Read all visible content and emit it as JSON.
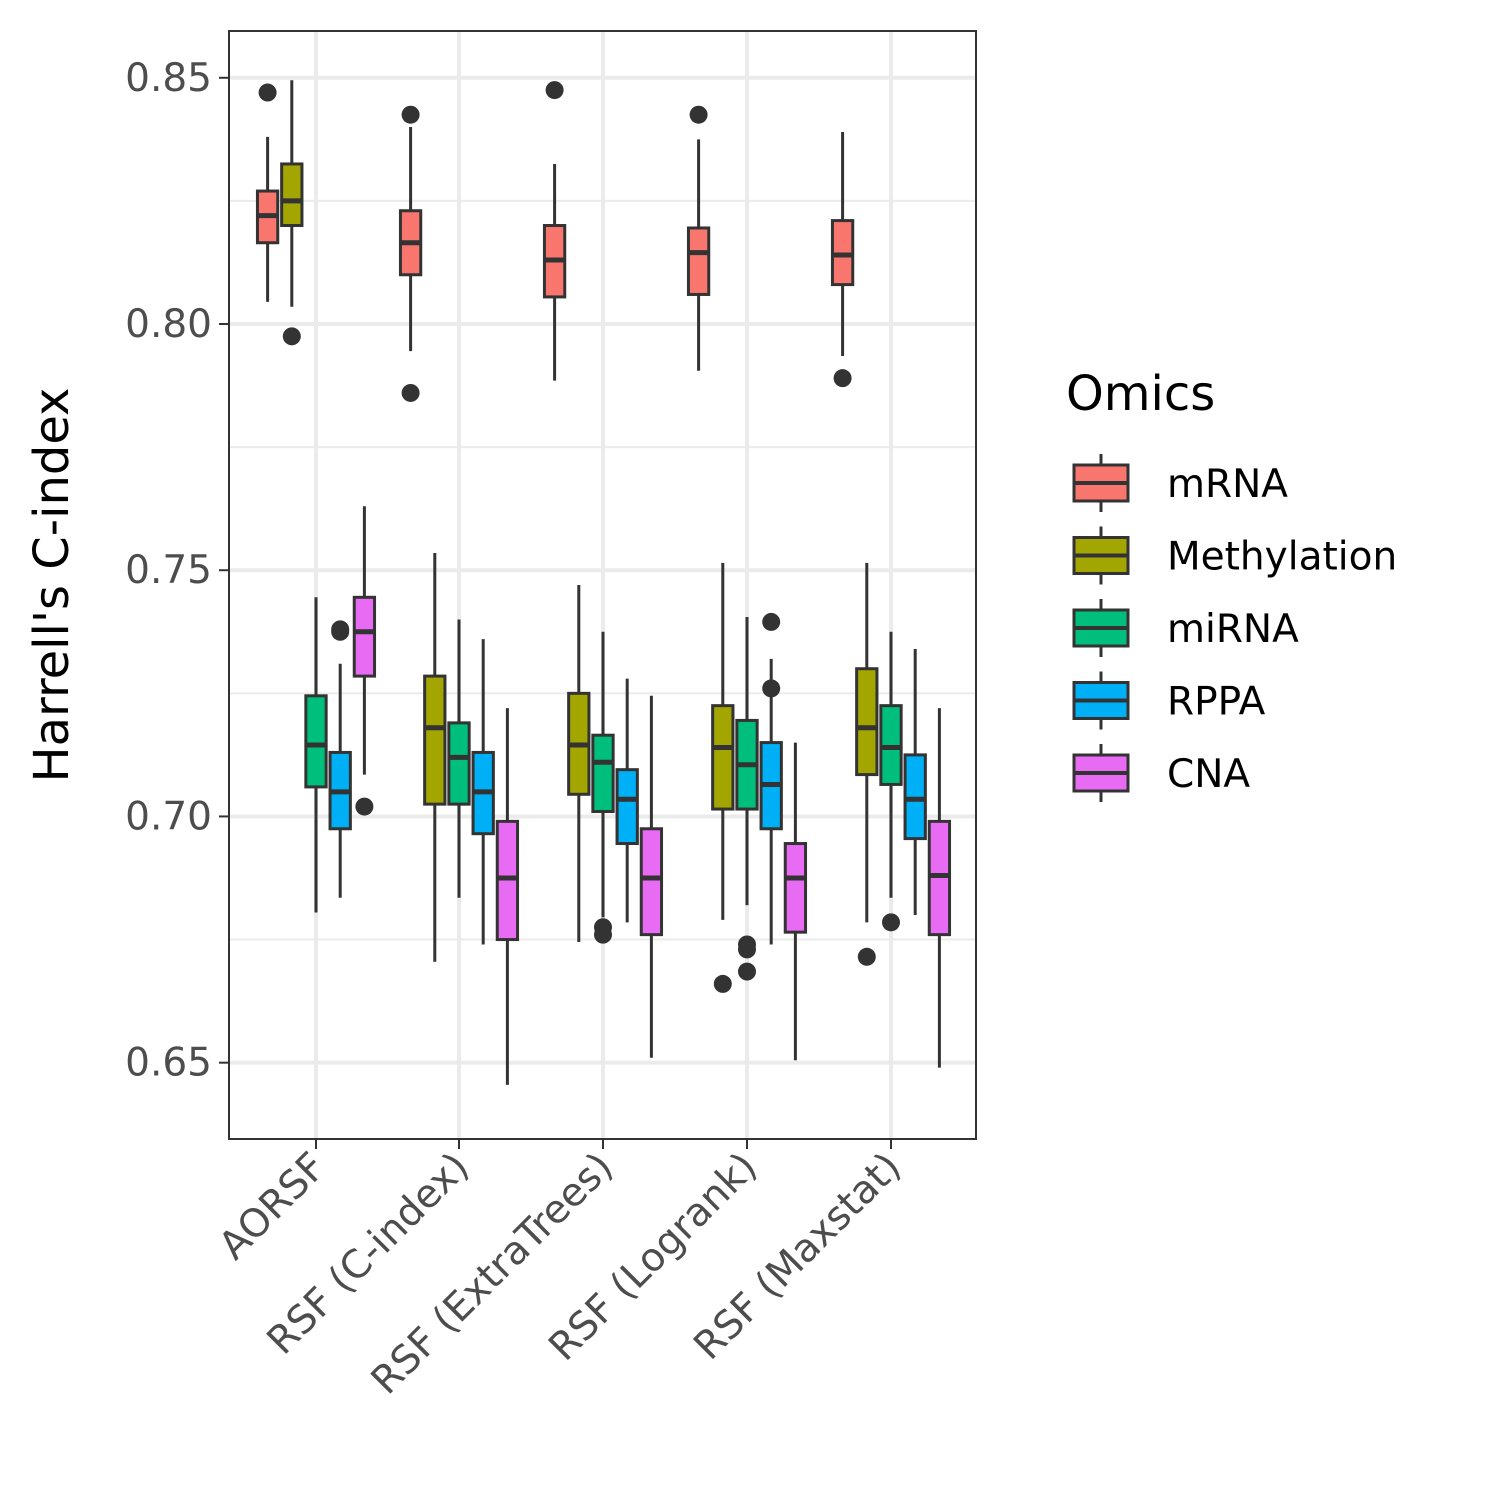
{
  "chart_data": {
    "type": "boxplot",
    "ylabel": "Harrell's C-index",
    "xlabel": "",
    "ylim": [
      0.6345,
      0.8595
    ],
    "yticks": [
      "0.65",
      "0.70",
      "0.75",
      "0.80",
      "0.85"
    ],
    "grid": true,
    "legend_position": "right",
    "legend_title": "Omics",
    "categories": [
      "AORSF",
      "RSF (C-index)",
      "RSF (ExtraTrees)",
      "RSF (Logrank)",
      "RSF (Maxstat)"
    ],
    "series": [
      {
        "name": "mRNA",
        "color": "#F8766D",
        "boxes": [
          {
            "category": "AORSF",
            "lower_whisker": 0.8045,
            "q1": 0.8165,
            "median": 0.822,
            "q3": 0.827,
            "upper_whisker": 0.838,
            "outliers": [
              0.847
            ]
          },
          {
            "category": "RSF (C-index)",
            "lower_whisker": 0.7945,
            "q1": 0.81,
            "median": 0.8165,
            "q3": 0.823,
            "upper_whisker": 0.84,
            "outliers": [
              0.8425,
              0.786
            ]
          },
          {
            "category": "RSF (ExtraTrees)",
            "lower_whisker": 0.7885,
            "q1": 0.8055,
            "median": 0.813,
            "q3": 0.82,
            "upper_whisker": 0.8325,
            "outliers": [
              0.8475
            ]
          },
          {
            "category": "RSF (Logrank)",
            "lower_whisker": 0.7905,
            "q1": 0.806,
            "median": 0.8145,
            "q3": 0.8195,
            "upper_whisker": 0.8375,
            "outliers": [
              0.8425
            ]
          },
          {
            "category": "RSF (Maxstat)",
            "lower_whisker": 0.7935,
            "q1": 0.808,
            "median": 0.814,
            "q3": 0.821,
            "upper_whisker": 0.839,
            "outliers": [
              0.789
            ]
          }
        ]
      },
      {
        "name": "Methylation",
        "color": "#A3A500",
        "boxes": [
          {
            "category": "AORSF",
            "lower_whisker": 0.8035,
            "q1": 0.82,
            "median": 0.825,
            "q3": 0.8325,
            "upper_whisker": 0.8495,
            "outliers": [
              0.7975
            ]
          },
          {
            "category": "RSF (C-index)",
            "lower_whisker": 0.6705,
            "q1": 0.7025,
            "median": 0.718,
            "q3": 0.7285,
            "upper_whisker": 0.7535,
            "outliers": []
          },
          {
            "category": "RSF (ExtraTrees)",
            "lower_whisker": 0.6745,
            "q1": 0.7045,
            "median": 0.7145,
            "q3": 0.725,
            "upper_whisker": 0.747,
            "outliers": []
          },
          {
            "category": "RSF (Logrank)",
            "lower_whisker": 0.679,
            "q1": 0.7015,
            "median": 0.714,
            "q3": 0.7225,
            "upper_whisker": 0.7515,
            "outliers": [
              0.666
            ]
          },
          {
            "category": "RSF (Maxstat)",
            "lower_whisker": 0.6785,
            "q1": 0.7085,
            "median": 0.718,
            "q3": 0.73,
            "upper_whisker": 0.7515,
            "outliers": [
              0.6715
            ]
          }
        ]
      },
      {
        "name": "miRNA",
        "color": "#00BF7D",
        "boxes": [
          {
            "category": "AORSF",
            "lower_whisker": 0.6805,
            "q1": 0.706,
            "median": 0.7145,
            "q3": 0.7245,
            "upper_whisker": 0.7445,
            "outliers": []
          },
          {
            "category": "RSF (C-index)",
            "lower_whisker": 0.6835,
            "q1": 0.7025,
            "median": 0.712,
            "q3": 0.719,
            "upper_whisker": 0.74,
            "outliers": []
          },
          {
            "category": "RSF (ExtraTrees)",
            "lower_whisker": 0.6795,
            "q1": 0.701,
            "median": 0.711,
            "q3": 0.7165,
            "upper_whisker": 0.7375,
            "outliers": [
              0.6775,
              0.676
            ]
          },
          {
            "category": "RSF (Logrank)",
            "lower_whisker": 0.682,
            "q1": 0.7015,
            "median": 0.7105,
            "q3": 0.7195,
            "upper_whisker": 0.7405,
            "outliers": [
              0.674,
              0.673,
              0.6685
            ]
          },
          {
            "category": "RSF (Maxstat)",
            "lower_whisker": 0.6835,
            "q1": 0.7065,
            "median": 0.714,
            "q3": 0.7225,
            "upper_whisker": 0.7375,
            "outliers": [
              0.6785
            ]
          }
        ]
      },
      {
        "name": "RPPA",
        "color": "#00B0F6",
        "boxes": [
          {
            "category": "AORSF",
            "lower_whisker": 0.6835,
            "q1": 0.6975,
            "median": 0.705,
            "q3": 0.713,
            "upper_whisker": 0.731,
            "outliers": [
              0.738,
              0.7375
            ]
          },
          {
            "category": "RSF (C-index)",
            "lower_whisker": 0.674,
            "q1": 0.6965,
            "median": 0.705,
            "q3": 0.713,
            "upper_whisker": 0.736,
            "outliers": []
          },
          {
            "category": "RSF (ExtraTrees)",
            "lower_whisker": 0.6785,
            "q1": 0.6945,
            "median": 0.7035,
            "q3": 0.7095,
            "upper_whisker": 0.728,
            "outliers": []
          },
          {
            "category": "RSF (Logrank)",
            "lower_whisker": 0.674,
            "q1": 0.6975,
            "median": 0.7065,
            "q3": 0.715,
            "upper_whisker": 0.732,
            "outliers": [
              0.7395,
              0.726
            ]
          },
          {
            "category": "RSF (Maxstat)",
            "lower_whisker": 0.68,
            "q1": 0.6955,
            "median": 0.7035,
            "q3": 0.7125,
            "upper_whisker": 0.734,
            "outliers": []
          }
        ]
      },
      {
        "name": "CNA",
        "color": "#E76BF3",
        "boxes": [
          {
            "category": "AORSF",
            "lower_whisker": 0.7085,
            "q1": 0.7285,
            "median": 0.7375,
            "q3": 0.7445,
            "upper_whisker": 0.763,
            "outliers": [
              0.702
            ]
          },
          {
            "category": "RSF (C-index)",
            "lower_whisker": 0.6455,
            "q1": 0.675,
            "median": 0.6875,
            "q3": 0.699,
            "upper_whisker": 0.722,
            "outliers": []
          },
          {
            "category": "RSF (ExtraTrees)",
            "lower_whisker": 0.651,
            "q1": 0.676,
            "median": 0.6875,
            "q3": 0.6975,
            "upper_whisker": 0.7245,
            "outliers": []
          },
          {
            "category": "RSF (Logrank)",
            "lower_whisker": 0.6505,
            "q1": 0.6765,
            "median": 0.6875,
            "q3": 0.6945,
            "upper_whisker": 0.715,
            "outliers": []
          },
          {
            "category": "RSF (Maxstat)",
            "lower_whisker": 0.649,
            "q1": 0.676,
            "median": 0.688,
            "q3": 0.699,
            "upper_whisker": 0.722,
            "outliers": []
          }
        ]
      }
    ]
  }
}
